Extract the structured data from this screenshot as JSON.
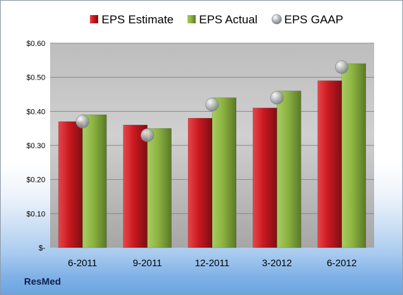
{
  "company": "ResMed",
  "chart_data": {
    "type": "bar",
    "categories": [
      "6-2011",
      "9-2011",
      "12-2011",
      "3-2012",
      "6-2012"
    ],
    "series": [
      {
        "name": "EPS Estimate",
        "kind": "bar",
        "color": "#c8181f",
        "values": [
          0.37,
          0.36,
          0.38,
          0.41,
          0.49
        ]
      },
      {
        "name": "EPS Actual",
        "kind": "bar",
        "color": "#8cb341",
        "values": [
          0.39,
          0.35,
          0.44,
          0.46,
          0.54
        ]
      },
      {
        "name": "EPS GAAP",
        "kind": "marker",
        "color": "#b4b8bd",
        "values": [
          0.37,
          0.33,
          0.42,
          0.44,
          0.53
        ]
      }
    ],
    "y_ticks": [
      {
        "value": 0,
        "label": "$-"
      },
      {
        "value": 0.1,
        "label": "$0.10"
      },
      {
        "value": 0.2,
        "label": "$0.20"
      },
      {
        "value": 0.3,
        "label": "$0.30"
      },
      {
        "value": 0.4,
        "label": "$0.40"
      },
      {
        "value": 0.5,
        "label": "$0.50"
      },
      {
        "value": 0.6,
        "label": "$0.60"
      }
    ],
    "ylim": [
      0,
      0.6
    ],
    "legend_position": "top",
    "grid": true
  }
}
